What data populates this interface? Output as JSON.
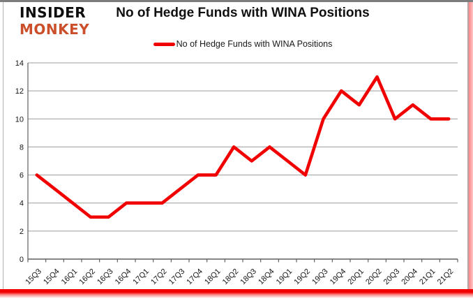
{
  "branding": {
    "logo_line1": "INSIDER",
    "logo_line2": "MONKEY",
    "logo_color": "#cc4f2b"
  },
  "header": {
    "title": "No of Hedge Funds with WINA Positions"
  },
  "legend": {
    "label": "No of Hedge Funds with WINA Positions"
  },
  "chart_data": {
    "type": "line",
    "title": "No of Hedge Funds with WINA Positions",
    "categories": [
      "15Q3",
      "15Q4",
      "16Q1",
      "16Q2",
      "16Q3",
      "16Q4",
      "17Q1",
      "17Q2",
      "17Q3",
      "17Q4",
      "18Q1",
      "18Q2",
      "18Q3",
      "18Q4",
      "19Q1",
      "19Q2",
      "19Q3",
      "19Q4",
      "20Q1",
      "20Q2",
      "20Q3",
      "20Q4",
      "21Q1",
      "21Q2"
    ],
    "series": [
      {
        "name": "No of Hedge Funds with WINA Positions",
        "color": "#f10000",
        "values": [
          6,
          5,
          4,
          3,
          3,
          4,
          4,
          4,
          5,
          6,
          6,
          8,
          7,
          8,
          7,
          6,
          10,
          12,
          11,
          13,
          10,
          11,
          10,
          10
        ]
      }
    ],
    "xlabel": "",
    "ylabel": "",
    "ylim": [
      0,
      14
    ],
    "ytick_step": 2,
    "grid": "horizontal",
    "legend_position": "top-center",
    "styles": {
      "gridline_color": "#9c9c9c",
      "axis_color": "#5f5f5f",
      "label_color": "#141414",
      "line_width": 4.6
    }
  }
}
